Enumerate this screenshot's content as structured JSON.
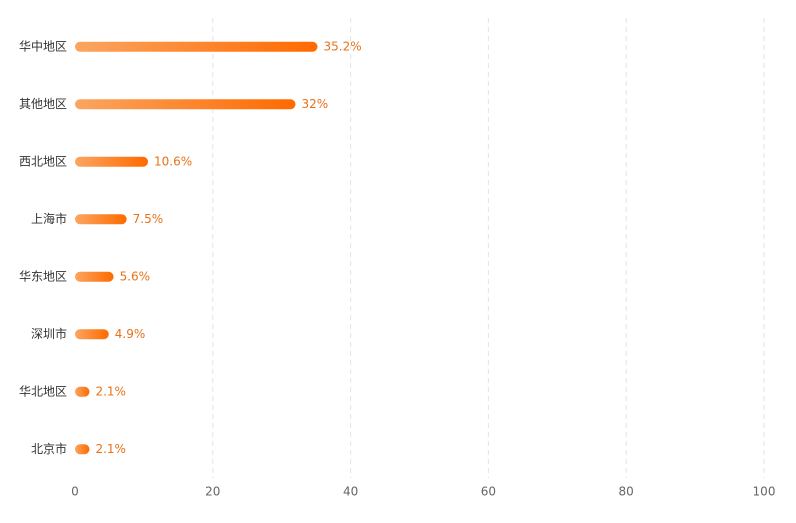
{
  "chart_data": {
    "type": "bar",
    "orientation": "horizontal",
    "categories": [
      "华中地区",
      "其他地区",
      "西北地区",
      "上海市",
      "华东地区",
      "深圳市",
      "华北地区",
      "北京市"
    ],
    "values": [
      35.2,
      32,
      10.6,
      7.5,
      5.6,
      4.9,
      2.1,
      2.1
    ],
    "value_labels": [
      "35.2%",
      "32%",
      "10.6%",
      "7.5%",
      "5.6%",
      "4.9%",
      "2.1%",
      "2.1%"
    ],
    "color": "#ff6a00",
    "xlim": [
      0,
      100
    ],
    "xticks": [
      0,
      20,
      40,
      60,
      80,
      100
    ],
    "grid": true
  }
}
